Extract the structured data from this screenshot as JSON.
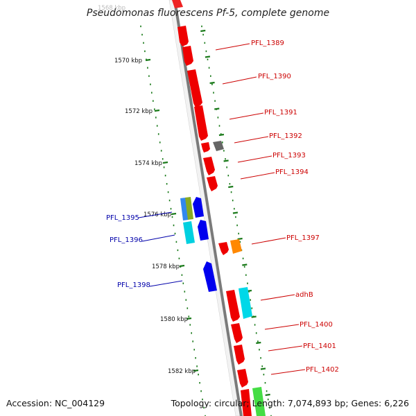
{
  "title": "Pseudomonas fluorescens Pf-5, complete genome",
  "accession_label": "Accession: NC_004129",
  "summary_label": "Topology: circular; Length: 7,074,893 bp; Genes: 6,226",
  "scale": {
    "unit": "kbp",
    "ticks": [
      1568,
      1570,
      1572,
      1574,
      1576,
      1578,
      1580,
      1582
    ]
  },
  "tick_labels": [
    "1568 kbp",
    "1570 kbp",
    "1572 kbp",
    "1574 kbp",
    "1576 kbp",
    "1578 kbp",
    "1580 kbp",
    "1582 kbp"
  ],
  "colors": {
    "backbone": "#7a7a7a",
    "ruler": "#1a7a1a",
    "forward_label": "#cc0000",
    "reverse_label": "#0000aa"
  },
  "genes": [
    {
      "label": "PFL_1389",
      "strand": "forward",
      "color": "#ee0000"
    },
    {
      "label": "PFL_1390",
      "strand": "forward",
      "color": "#ee0000"
    },
    {
      "label": "PFL_1391",
      "strand": "forward",
      "color": "#ee0000"
    },
    {
      "label": "PFL_1392",
      "strand": "forward",
      "color": "#ee0000"
    },
    {
      "label": "PFL_1393",
      "strand": "forward",
      "color": "#ee0000"
    },
    {
      "label": "PFL_1394",
      "strand": "forward",
      "color": "#ee0000"
    },
    {
      "label": "PFL_1395",
      "strand": "reverse",
      "color": "#0000ee"
    },
    {
      "label": "PFL_1396",
      "strand": "reverse",
      "color": "#0000ee"
    },
    {
      "label": "PFL_1397",
      "strand": "forward",
      "color": "#ee0000"
    },
    {
      "label": "PFL_1398",
      "strand": "reverse",
      "color": "#0000ee"
    },
    {
      "label": "adhB",
      "strand": "forward",
      "color": "#ee0000"
    },
    {
      "label": "PFL_1400",
      "strand": "forward",
      "color": "#ee0000"
    },
    {
      "label": "PFL_1401",
      "strand": "forward",
      "color": "#ee0000"
    },
    {
      "label": "PFL_1402",
      "strand": "forward",
      "color": "#ee0000"
    }
  ]
}
